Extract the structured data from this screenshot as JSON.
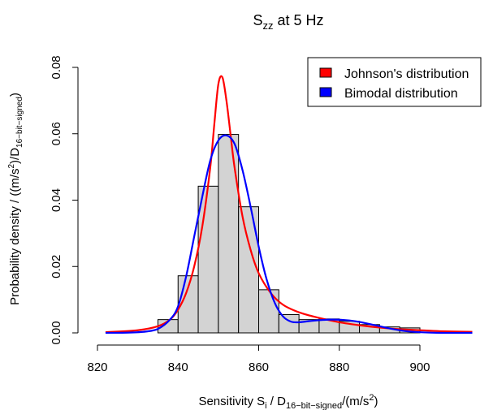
{
  "chart_data": {
    "type": "histogram",
    "title": {
      "main": "S",
      "sub": "zz",
      "rest": " at 5 Hz"
    },
    "xlabel": {
      "part1": "Sensitivity S",
      "sub1": "i",
      "part2": " / D",
      "sub2": "16−bit−signed",
      "part3": "/(m/s",
      "sup1": "2",
      "part4": ")"
    },
    "ylabel": {
      "part1": "Probability density / ((m/s",
      "sup1": "2",
      "part2": ")/D",
      "sub1": "16−bit−signed",
      "part3": ")"
    },
    "xlim": [
      820,
      915
    ],
    "ylim": [
      0,
      0.08
    ],
    "x_ticks": [
      820,
      840,
      860,
      880,
      900
    ],
    "x_tick_labels": [
      "820",
      "840",
      "860",
      "880",
      "900"
    ],
    "y_ticks": [
      0.0,
      0.02,
      0.04,
      0.06,
      0.08
    ],
    "y_tick_labels": [
      "0.00",
      "0.02",
      "0.04",
      "0.06",
      "0.08"
    ],
    "histogram": {
      "bin_edges": [
        835,
        840,
        845,
        850,
        855,
        860,
        865,
        870,
        875,
        880,
        885,
        890,
        895,
        900
      ],
      "densities": [
        0.004,
        0.0172,
        0.0442,
        0.0598,
        0.038,
        0.013,
        0.0055,
        0.004,
        0.0042,
        0.0035,
        0.0025,
        0.0018,
        0.0015
      ],
      "color": "#d3d3d3"
    },
    "series": [
      {
        "name": "Johnson's distribution",
        "color": "#ff0000",
        "points": [
          [
            822,
            0.0002
          ],
          [
            830,
            0.0008
          ],
          [
            835,
            0.002
          ],
          [
            838,
            0.004
          ],
          [
            840,
            0.007
          ],
          [
            842,
            0.012
          ],
          [
            844,
            0.02
          ],
          [
            846,
            0.032
          ],
          [
            848,
            0.05
          ],
          [
            849,
            0.063
          ],
          [
            850,
            0.075
          ],
          [
            851,
            0.077
          ],
          [
            852,
            0.07
          ],
          [
            853,
            0.06
          ],
          [
            854,
            0.05
          ],
          [
            856,
            0.035
          ],
          [
            858,
            0.025
          ],
          [
            860,
            0.018
          ],
          [
            863,
            0.012
          ],
          [
            866,
            0.0085
          ],
          [
            870,
            0.0062
          ],
          [
            875,
            0.0045
          ],
          [
            880,
            0.0032
          ],
          [
            885,
            0.0023
          ],
          [
            890,
            0.0016
          ],
          [
            895,
            0.0011
          ],
          [
            900,
            0.0008
          ],
          [
            905,
            0.0005
          ],
          [
            913,
            0.0003
          ]
        ]
      },
      {
        "name": "Bimodal distribution",
        "color": "#0000ff",
        "points": [
          [
            822,
            0.0
          ],
          [
            828,
            0.0001
          ],
          [
            832,
            0.0004
          ],
          [
            835,
            0.0012
          ],
          [
            838,
            0.004
          ],
          [
            840,
            0.008
          ],
          [
            842,
            0.017
          ],
          [
            844,
            0.029
          ],
          [
            846,
            0.041
          ],
          [
            848,
            0.052
          ],
          [
            850,
            0.058
          ],
          [
            852,
            0.0595
          ],
          [
            854,
            0.057
          ],
          [
            856,
            0.049
          ],
          [
            858,
            0.038
          ],
          [
            860,
            0.026
          ],
          [
            862,
            0.016
          ],
          [
            864,
            0.009
          ],
          [
            866,
            0.005
          ],
          [
            868,
            0.0034
          ],
          [
            870,
            0.0032
          ],
          [
            873,
            0.0036
          ],
          [
            876,
            0.0039
          ],
          [
            878,
            0.004
          ],
          [
            881,
            0.0039
          ],
          [
            884,
            0.0035
          ],
          [
            887,
            0.0028
          ],
          [
            890,
            0.002
          ],
          [
            893,
            0.0012
          ],
          [
            896,
            0.0006
          ],
          [
            900,
            0.0002
          ],
          [
            905,
            0.0
          ],
          [
            913,
            0.0
          ]
        ]
      }
    ],
    "legend": {
      "position": "top-right"
    }
  }
}
